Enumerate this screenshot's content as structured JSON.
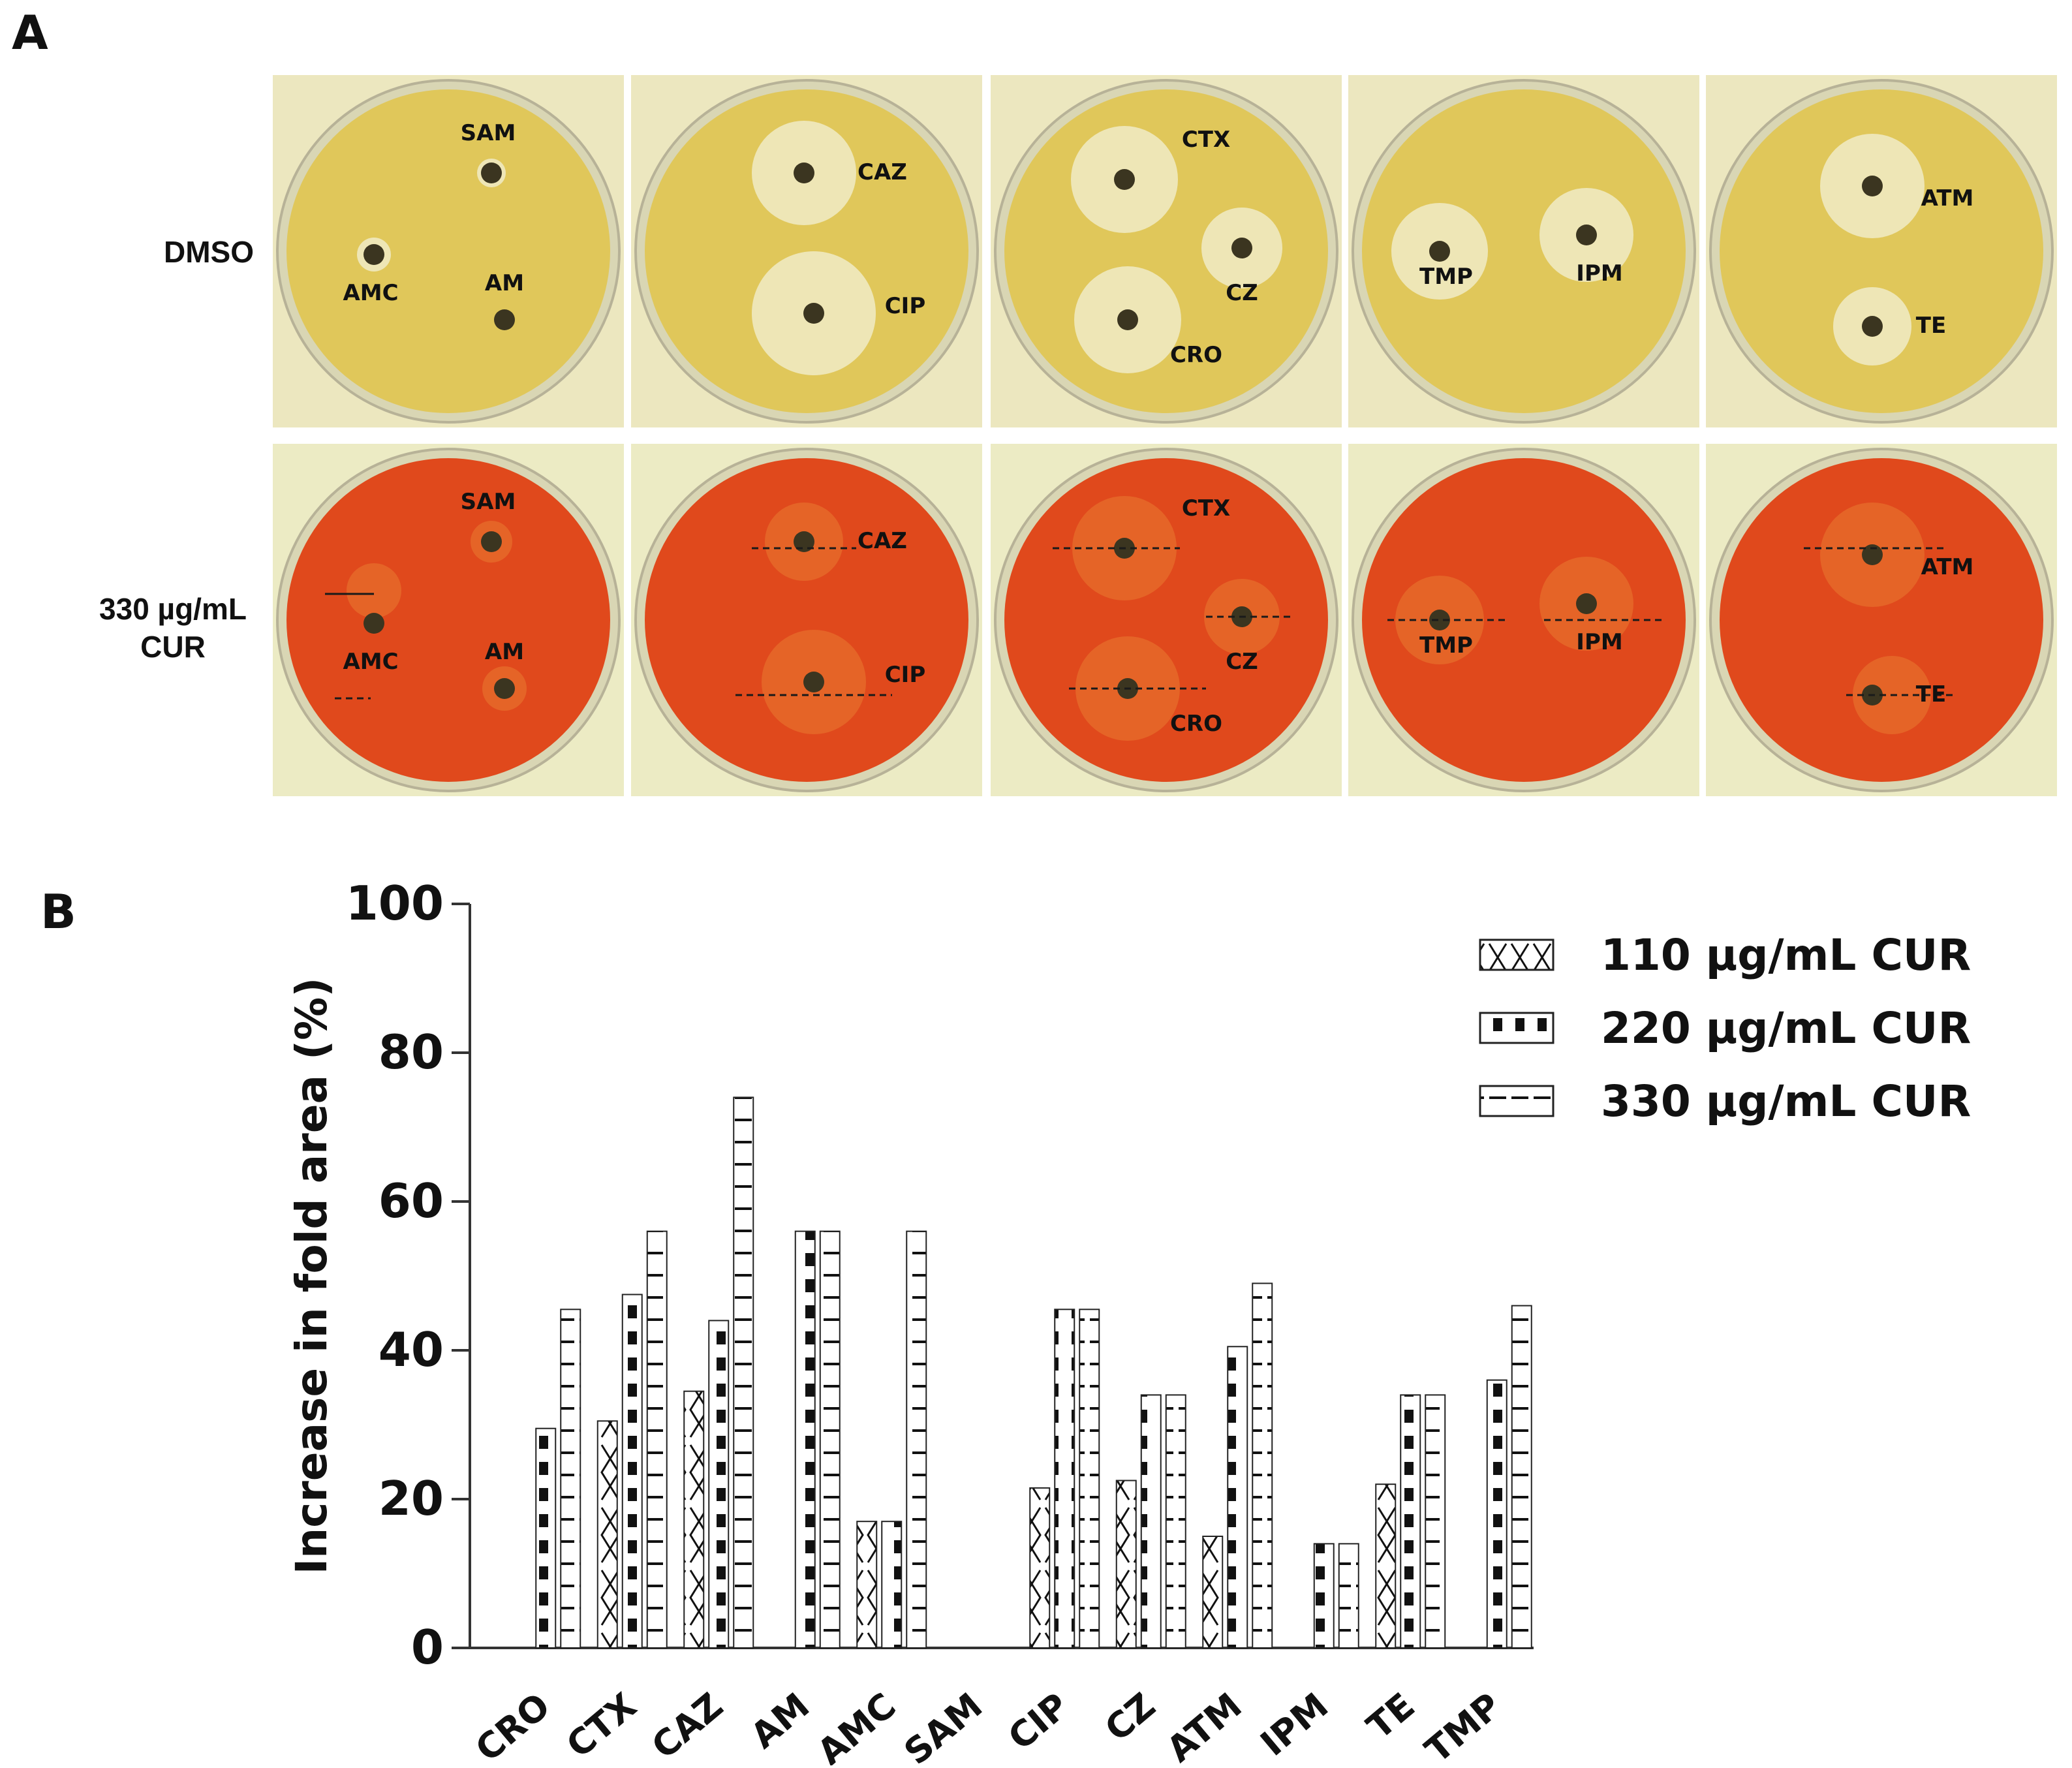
{
  "panel_a": {
    "letter": "A",
    "rows": [
      {
        "label_lines": [
          "DMSO"
        ]
      },
      {
        "label_lines": [
          "330 µg/mL",
          "CUR"
        ]
      }
    ],
    "plates": [
      {
        "labels": [
          "SAM",
          "AMC",
          "AM"
        ]
      },
      {
        "labels": [
          "CAZ",
          "CIP"
        ]
      },
      {
        "labels": [
          "CTX",
          "CZ",
          "CRO"
        ]
      },
      {
        "labels": [
          "TMP",
          "IPM"
        ]
      },
      {
        "labels": [
          "ATM",
          "TE"
        ]
      }
    ],
    "colors": {
      "dmso_bg": "#ece7bf",
      "dmso_agar": "#e0c75a",
      "cur_bg": "#ecebc4",
      "cur_agar": "#e0491c",
      "zone": "#efe9c0",
      "disk": "#3b3520"
    }
  },
  "chart_data": {
    "panel_letter": "B",
    "type": "bar",
    "title": "",
    "xlabel": "",
    "ylabel": "Increase in fold area (%)",
    "ylim": [
      0,
      100
    ],
    "yticks": [
      0,
      20,
      40,
      60,
      80,
      100
    ],
    "categories": [
      "CRO",
      "CTX",
      "CAZ",
      "AM",
      "AMC",
      "SAM",
      "CIP",
      "CZ",
      "ATM",
      "IPM",
      "TE",
      "TMP"
    ],
    "series": [
      {
        "name": "110 µg/mL CUR",
        "pattern": "cross",
        "values": [
          0,
          30.5,
          34.5,
          0,
          17,
          0,
          21.5,
          22.5,
          15,
          0,
          22,
          0
        ]
      },
      {
        "name": "220 µg/mL CUR",
        "pattern": "checker",
        "values": [
          29.5,
          47.5,
          44,
          56,
          17,
          0,
          45.5,
          34,
          40.5,
          14,
          34,
          36
        ]
      },
      {
        "name": "330 µg/mL CUR",
        "pattern": "hlines",
        "values": [
          45.5,
          56,
          74,
          56,
          56,
          0,
          45.5,
          34,
          49,
          14,
          34,
          46
        ]
      }
    ],
    "legend_position": "top-right",
    "grid": false
  }
}
